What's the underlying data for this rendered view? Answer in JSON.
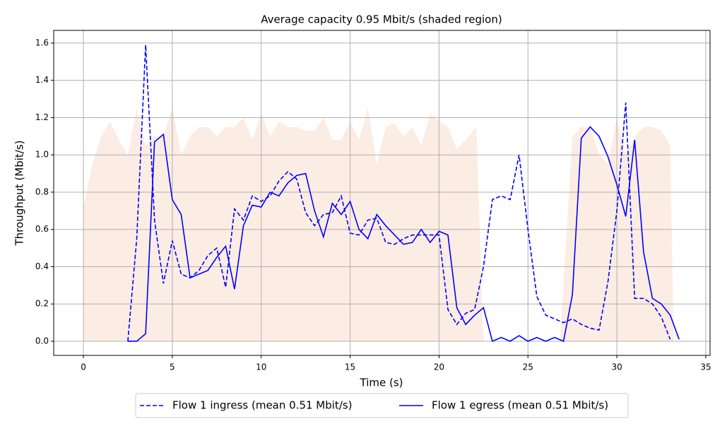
{
  "chart_data": {
    "type": "line",
    "title": "Average capacity 0.95 Mbit/s (shaded region)",
    "x_label": "Time (s)",
    "y_label": "Throughput (Mbit/s)",
    "xlim": [
      -1.67,
      35.24
    ],
    "ylim": [
      -0.076,
      1.668
    ],
    "xticks": [
      0,
      5,
      10,
      15,
      20,
      25,
      30,
      35
    ],
    "yticks": [
      {
        "value": 0,
        "label": "0.0"
      },
      0.2,
      0.4,
      0.6,
      0.8,
      {
        "value": 1,
        "label": "1.0"
      },
      1.2,
      1.4,
      1.6
    ],
    "grid": true,
    "legend": "bottom",
    "capacity": {
      "color": "#fbede3",
      "x": [
        0,
        0.5,
        1,
        1.5,
        2,
        2.5,
        3,
        3.5,
        4,
        4.5,
        5,
        5.5,
        6,
        6.5,
        7,
        7.5,
        8,
        8.5,
        9,
        9.5,
        10,
        10.5,
        11,
        11.5,
        12,
        12.5,
        13,
        13.5,
        14,
        14.5,
        15,
        15.5,
        16,
        16.5,
        17,
        17.5,
        18,
        18.5,
        19,
        19.5,
        20,
        20.5,
        21,
        21.5,
        22.1,
        22.5,
        26.8,
        27.5,
        28,
        28.5,
        29,
        29.5,
        30,
        30.5,
        31,
        31.5,
        32,
        32.5,
        33,
        33.2
      ],
      "values": [
        0.72,
        0.95,
        1.1,
        1.18,
        1.08,
        1.0,
        1.25,
        1.05,
        1.1,
        1.1,
        1.25,
        1.0,
        1.1,
        1.15,
        1.15,
        1.1,
        1.15,
        1.15,
        1.2,
        1.08,
        1.22,
        1.1,
        1.18,
        1.15,
        1.15,
        1.13,
        1.13,
        1.2,
        1.08,
        1.08,
        1.18,
        1.08,
        1.25,
        0.95,
        1.15,
        1.17,
        1.1,
        1.15,
        1.05,
        1.22,
        1.18,
        1.15,
        1.03,
        1.08,
        1.15,
        0,
        0,
        1.1,
        1.15,
        1.15,
        1.0,
        0.95,
        1.2,
        1.0,
        1.1,
        1.15,
        1.15,
        1.13,
        1.05,
        0
      ]
    },
    "series": [
      {
        "name": "Flow 1 ingress (mean 0.51 Mbit/s)",
        "color": "#0000ff",
        "linestyle": "dashed",
        "x": [
          2.5,
          3,
          3.5,
          4,
          4.5,
          5,
          5.5,
          6,
          6.5,
          7,
          7.5,
          8,
          8.5,
          9,
          9.5,
          10,
          10.5,
          11,
          11.5,
          12,
          12.5,
          13,
          13.5,
          14,
          14.5,
          15,
          15.5,
          16,
          16.5,
          17,
          17.5,
          18,
          18.5,
          19,
          19.5,
          20,
          20.5,
          21,
          21.5,
          22,
          22.5,
          23,
          23.5,
          24,
          24.5,
          25,
          25.5,
          26,
          26.5,
          27,
          27.5,
          28,
          28.5,
          29,
          29.5,
          30,
          30.5,
          31,
          31.5,
          32,
          32.5,
          33
        ],
        "values": [
          0,
          0.55,
          1.59,
          0.65,
          0.31,
          0.54,
          0.36,
          0.34,
          0.38,
          0.46,
          0.5,
          0.29,
          0.71,
          0.65,
          0.78,
          0.75,
          0.78,
          0.86,
          0.91,
          0.87,
          0.69,
          0.62,
          0.68,
          0.69,
          0.78,
          0.58,
          0.57,
          0.65,
          0.66,
          0.53,
          0.52,
          0.55,
          0.57,
          0.57,
          0.57,
          0.57,
          0.17,
          0.09,
          0.15,
          0.17,
          0.4,
          0.76,
          0.78,
          0.76,
          1.0,
          0.6,
          0.24,
          0.14,
          0.12,
          0.1,
          0.12,
          0.09,
          0.07,
          0.06,
          0.32,
          0.7,
          1.28,
          0.23,
          0.23,
          0.2,
          0.13,
          0.01
        ]
      },
      {
        "name": "Flow 1 egress (mean 0.51 Mbit/s)",
        "color": "#0000ff",
        "linestyle": "solid",
        "x": [
          2.5,
          3,
          3.5,
          4,
          4.5,
          5,
          5.5,
          6,
          7,
          7.5,
          8,
          8.5,
          9,
          9.5,
          10,
          10.5,
          11,
          11.5,
          12,
          12.5,
          13,
          13.5,
          14,
          14.5,
          15,
          15.5,
          16,
          16.5,
          17,
          17.5,
          18,
          18.5,
          19,
          19.5,
          20,
          20.5,
          21,
          21.5,
          22,
          22.5,
          23,
          23.5,
          24,
          24.5,
          25,
          25.5,
          26,
          26.5,
          27,
          27.5,
          28,
          28.5,
          29,
          29.5,
          30,
          30.5,
          31,
          31.5,
          32,
          32.5,
          33,
          33.5
        ],
        "values": [
          0,
          0,
          0.04,
          1.07,
          1.11,
          0.76,
          0.68,
          0.34,
          0.38,
          0.45,
          0.51,
          0.28,
          0.62,
          0.73,
          0.72,
          0.8,
          0.78,
          0.85,
          0.89,
          0.9,
          0.7,
          0.56,
          0.74,
          0.68,
          0.75,
          0.6,
          0.55,
          0.68,
          0.62,
          0.57,
          0.52,
          0.53,
          0.6,
          0.53,
          0.59,
          0.57,
          0.18,
          0.09,
          0.14,
          0.18,
          0,
          0.02,
          0,
          0.03,
          0,
          0.02,
          0,
          0.02,
          0,
          0.25,
          1.09,
          1.15,
          1.1,
          0.99,
          0.84,
          0.67,
          1.08,
          0.48,
          0.23,
          0.2,
          0.14,
          0.01
        ]
      }
    ]
  }
}
